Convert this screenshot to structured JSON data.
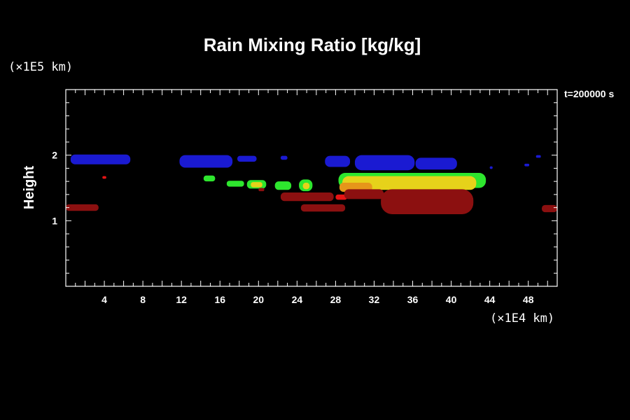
{
  "chart_data": {
    "type": "heatmap",
    "title": "Rain Mixing Ratio [kg/kg]",
    "ylabel": "Height",
    "xlabel": "",
    "x_unit": "(×1E4 km)",
    "y_unit": "(×1E5 km)",
    "time_label": "t=200000 s",
    "xlim": [
      0,
      51
    ],
    "ylim": [
      0,
      3
    ],
    "x_ticks": [
      4,
      8,
      12,
      16,
      20,
      24,
      28,
      32,
      36,
      40,
      44,
      48
    ],
    "y_ticks": [
      1,
      2
    ],
    "grid": false,
    "colors": {
      "blue": "#1a1ad2",
      "green": "#2ee62e",
      "yellow": "#e6d21a",
      "orange": "#e6961a",
      "red": "#e61414",
      "dark_red": "#8c1010"
    },
    "regions": [
      {
        "band": "blue",
        "x": [
          0.5,
          6.7
        ],
        "y": [
          1.86,
          2.01
        ]
      },
      {
        "band": "blue",
        "x": [
          11.8,
          17.3
        ],
        "y": [
          1.81,
          2.0
        ]
      },
      {
        "band": "blue",
        "x": [
          17.8,
          19.8
        ],
        "y": [
          1.9,
          1.99
        ]
      },
      {
        "band": "blue",
        "x": [
          22.3,
          23.0
        ],
        "y": [
          1.93,
          1.99
        ]
      },
      {
        "band": "blue",
        "x": [
          26.9,
          29.5
        ],
        "y": [
          1.82,
          1.99
        ]
      },
      {
        "band": "blue",
        "x": [
          30.0,
          36.2
        ],
        "y": [
          1.77,
          2.0
        ]
      },
      {
        "band": "blue",
        "x": [
          36.3,
          40.6
        ],
        "y": [
          1.78,
          1.96
        ]
      },
      {
        "band": "blue",
        "x": [
          44.0,
          44.3
        ],
        "y": [
          1.79,
          1.83
        ]
      },
      {
        "band": "blue",
        "x": [
          47.6,
          48.1
        ],
        "y": [
          1.83,
          1.87
        ]
      },
      {
        "band": "blue",
        "x": [
          48.8,
          49.3
        ],
        "y": [
          1.96,
          2.0
        ]
      },
      {
        "band": "green",
        "x": [
          14.3,
          15.5
        ],
        "y": [
          1.6,
          1.69
        ]
      },
      {
        "band": "green",
        "x": [
          16.7,
          18.5
        ],
        "y": [
          1.52,
          1.61
        ]
      },
      {
        "band": "green",
        "x": [
          18.8,
          20.8
        ],
        "y": [
          1.49,
          1.62
        ]
      },
      {
        "band": "green",
        "x": [
          21.7,
          23.4
        ],
        "y": [
          1.47,
          1.6
        ]
      },
      {
        "band": "green",
        "x": [
          24.2,
          25.6
        ],
        "y": [
          1.45,
          1.63
        ]
      },
      {
        "band": "green",
        "x": [
          28.3,
          43.6
        ],
        "y": [
          1.5,
          1.73
        ]
      },
      {
        "band": "yellow",
        "x": [
          28.7,
          42.6
        ],
        "y": [
          1.47,
          1.68
        ]
      },
      {
        "band": "yellow",
        "x": [
          19.2,
          20.4
        ],
        "y": [
          1.51,
          1.59
        ]
      },
      {
        "band": "yellow",
        "x": [
          24.6,
          25.3
        ],
        "y": [
          1.48,
          1.58
        ]
      },
      {
        "band": "orange",
        "x": [
          28.4,
          31.8
        ],
        "y": [
          1.44,
          1.58
        ]
      },
      {
        "band": "red",
        "x": [
          3.8,
          4.2
        ],
        "y": [
          1.64,
          1.68
        ]
      },
      {
        "band": "red",
        "x": [
          28.0,
          29.2
        ],
        "y": [
          1.32,
          1.4
        ]
      },
      {
        "band": "dark_red",
        "x": [
          0.0,
          3.4
        ],
        "y": [
          1.15,
          1.25
        ]
      },
      {
        "band": "dark_red",
        "x": [
          20.0,
          20.6
        ],
        "y": [
          1.45,
          1.5
        ]
      },
      {
        "band": "dark_red",
        "x": [
          22.3,
          27.8
        ],
        "y": [
          1.3,
          1.43
        ]
      },
      {
        "band": "dark_red",
        "x": [
          24.4,
          29.0
        ],
        "y": [
          1.14,
          1.25
        ]
      },
      {
        "band": "dark_red",
        "x": [
          28.9,
          33.0
        ],
        "y": [
          1.33,
          1.48
        ]
      },
      {
        "band": "dark_red",
        "x": [
          32.7,
          42.3
        ],
        "y": [
          1.1,
          1.48
        ]
      },
      {
        "band": "dark_red",
        "x": [
          49.4,
          51.0
        ],
        "y": [
          1.13,
          1.24
        ]
      }
    ]
  }
}
